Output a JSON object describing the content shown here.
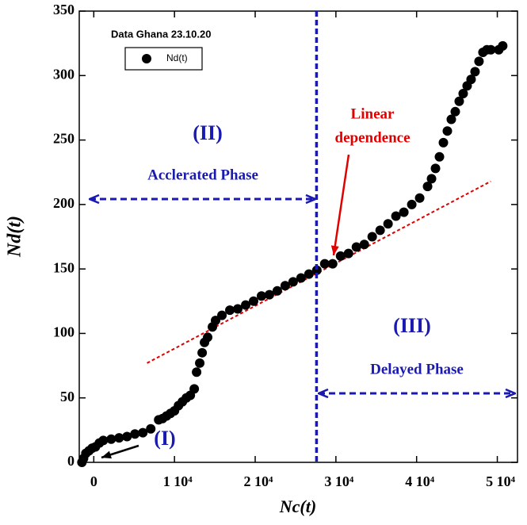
{
  "chart_data": {
    "type": "scatter",
    "title": "Data Ghana 23.10.20",
    "xlabel": "Nc(t)",
    "ylabel": "Nd(t)",
    "series": [
      {
        "name": "Nd(t)",
        "color": "#000000",
        "x": [
          -1470,
          -1270,
          -980,
          -590,
          -200,
          200,
          690,
          1180,
          2160,
          3140,
          4120,
          5100,
          6080,
          7060,
          8040,
          8530,
          9020,
          9510,
          10000,
          10490,
          10980,
          11470,
          11960,
          12450,
          12740,
          13130,
          13430,
          13720,
          14110,
          14700,
          15090,
          15880,
          16860,
          17840,
          18820,
          19800,
          20780,
          21760,
          22740,
          23720,
          24700,
          25680,
          26660,
          27640,
          28620,
          29600,
          30580,
          31560,
          32540,
          33520,
          34500,
          35480,
          36460,
          37440,
          38420,
          39400,
          40380,
          41360,
          41850,
          42340,
          42830,
          43320,
          43810,
          44300,
          44790,
          45280,
          45770,
          46260,
          46750,
          47240,
          47730,
          48220,
          48710,
          49200,
          50180,
          50670
        ],
        "values": [
          0,
          3,
          7,
          9,
          11,
          12,
          15,
          17,
          18,
          19,
          20,
          22,
          23,
          26,
          33,
          34,
          36,
          38,
          40,
          44,
          47,
          50,
          52,
          57,
          70,
          77,
          85,
          93,
          97,
          105,
          110,
          114,
          118,
          119,
          122,
          125,
          129,
          130,
          133,
          137,
          140,
          143,
          146,
          149,
          154,
          154,
          160,
          162,
          167,
          169,
          175,
          180,
          185,
          191,
          194,
          200,
          205,
          214,
          220,
          228,
          237,
          248,
          257,
          266,
          272,
          280,
          286,
          292,
          297,
          303,
          311,
          318,
          320,
          320,
          320,
          323
        ]
      }
    ],
    "fit_line": {
      "color": "#e00000",
      "x": [
        6600,
        49200
      ],
      "y": [
        77,
        218
      ]
    },
    "vline": 27600,
    "annotations": [
      "(I)",
      "(II)",
      "(III)",
      "Acclerated Phase",
      "Delayed Phase",
      "Linear",
      "dependence"
    ],
    "xlim": [
      -1800,
      52500
    ],
    "ylim": [
      0,
      350
    ],
    "xticks": [
      0,
      {
        "value": 10000,
        "label": "1 10⁴"
      },
      {
        "value": 20000,
        "label": "2 10⁴"
      },
      {
        "value": 30000,
        "label": "3 10⁴"
      },
      {
        "value": 40000,
        "label": "4 10⁴"
      },
      {
        "value": 50000,
        "label": "5 10⁴"
      }
    ],
    "yticks": [
      0,
      50,
      100,
      150,
      200,
      250,
      300,
      350
    ]
  }
}
